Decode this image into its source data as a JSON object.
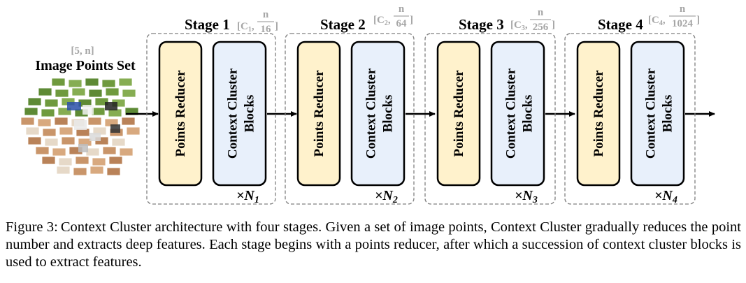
{
  "input": {
    "title": "Image Points Set",
    "shape": "[5, n]"
  },
  "stages": [
    {
      "title": "Stage 1",
      "shape_open": "[C",
      "shape_sub": "1",
      "shape_num": "n",
      "shape_den": "16",
      "shape_close": "]",
      "reducer_label": "Points Reducer",
      "blocks_line1": "Context Cluster",
      "blocks_line2": "Blocks",
      "repeat_prefix": "×N",
      "repeat_sub": "1"
    },
    {
      "title": "Stage 2",
      "shape_open": "[C",
      "shape_sub": "2",
      "shape_num": "n",
      "shape_den": "64",
      "shape_close": "]",
      "reducer_label": "Points Reducer",
      "blocks_line1": "Context Cluster",
      "blocks_line2": "Blocks",
      "repeat_prefix": "×N",
      "repeat_sub": "2"
    },
    {
      "title": "Stage 3",
      "shape_open": "[C",
      "shape_sub": "3",
      "shape_num": "n",
      "shape_den": "256",
      "shape_close": "]",
      "reducer_label": "Points Reducer",
      "blocks_line1": "Context Cluster",
      "blocks_line2": "Blocks",
      "repeat_prefix": "×N",
      "repeat_sub": "3"
    },
    {
      "title": "Stage 4",
      "shape_open": "[C",
      "shape_sub": "4",
      "shape_num": "n",
      "shape_den": "1024",
      "shape_close": "]",
      "reducer_label": "Points Reducer",
      "blocks_line1": "Context Cluster",
      "blocks_line2": "Blocks",
      "repeat_prefix": "×N",
      "repeat_sub": "4"
    }
  ],
  "caption": {
    "label": "Figure 3:",
    "text": "Context Cluster architecture with four stages. Given a set of image points, Context Cluster gradually reduces the point number and extracts deep features.  Each stage begins with a points reducer, after which a succession of context cluster blocks is used to extract features."
  },
  "colors": {
    "reducer_fill": "#fff2cc",
    "blocks_fill": "#e8f0fb",
    "stage_border": "#7f7f7f",
    "shape_text": "#a6a6a6",
    "grass": "#6f9a3e",
    "dirt": "#c9956a",
    "uniform_blue": "#2a4fa8"
  },
  "icons": {
    "input_image": "fragmented-baseball-photo-patches"
  }
}
